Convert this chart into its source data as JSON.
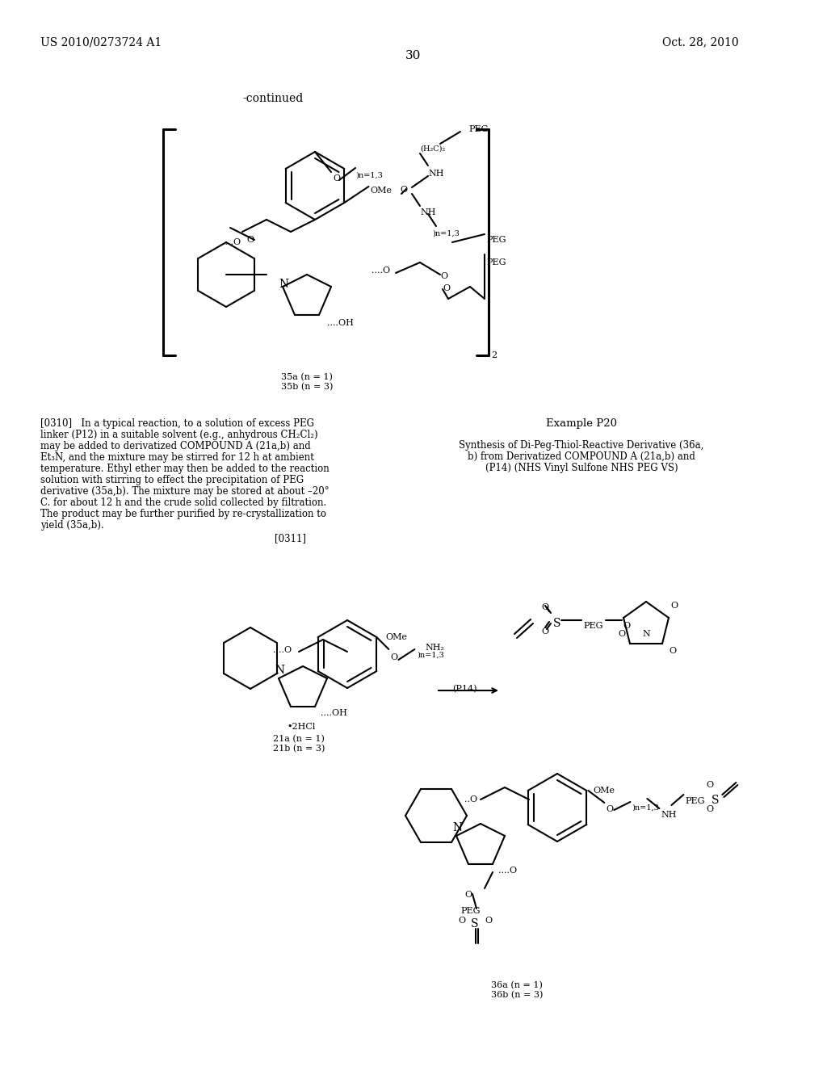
{
  "page_width": 10.24,
  "page_height": 13.2,
  "bg_color": "#ffffff",
  "patent_number": "US 2010/0273724 A1",
  "patent_date": "Oct. 28, 2010",
  "page_number": "30",
  "continued_text": "-continued",
  "compound_label_top": "35a (n = 1)\n35b (n = 3)",
  "example_title": "Example P20",
  "example_subtitle": "Synthesis of Di-Peg-Thiol-Reactive Derivative (36a,\nb) from Derivatized COMPOUND A (21a,b) and\n(P14) (NHS Vinyl Sulfone NHS PEG VS)",
  "paragraph_0310": "[0310]   In a typical reaction, to a solution of excess PEG linker (P12) in a suitable solvent (e.g., anhydrous CH₂Cl₂) may be added to derivatized COMPOUND A (21a,b) and Et₃N, and the mixture may be stirred for 12 h at ambient temperature. Ethyl ether may then be added to the reaction solution with stirring to effect the precipitation of PEG derivative (35a,b). The mixture may be stored at about –20° C. for about 12 h and the crude solid collected by filtration. The product may be further purified by re-crystallization to yield (35a,b).",
  "paragraph_0311": "[0311]",
  "compound_label_21": "21a (n = 1)\n21b (n = 3)",
  "compound_label_36": "36a (n = 1)\n36b (n = 3)",
  "arrow_label": "(P14)"
}
